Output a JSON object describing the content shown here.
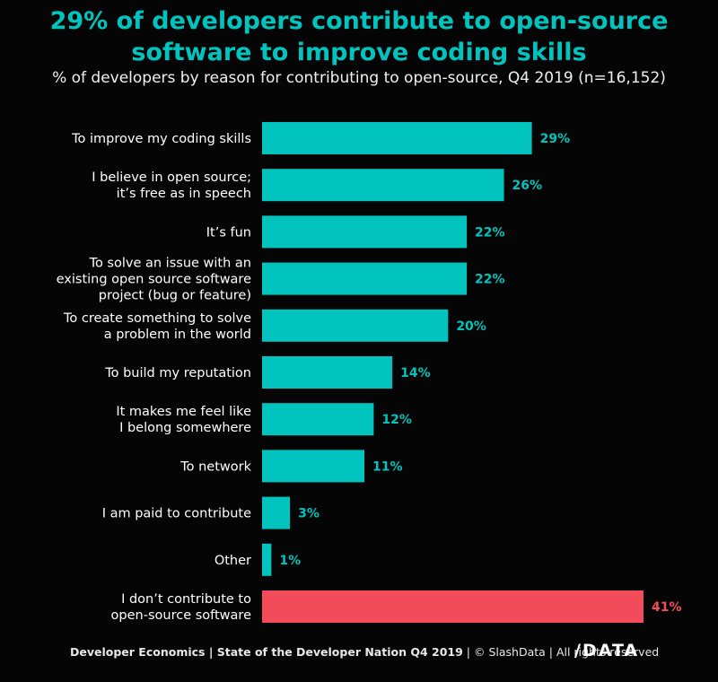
{
  "header": {
    "title_line1": "29% of developers contribute to open-source",
    "title_line2": "software to improve coding skills",
    "subtitle": "% of developers by reason for contributing to open-source, Q4 2019 (n=16,152)"
  },
  "footer": {
    "text_bold": "Developer Economics | State of the Developer Nation Q4 2019",
    "text_rest": " | © SlashData | All rights reserved",
    "logo": "/DATA"
  },
  "colors": {
    "accent": "#00c4bd",
    "highlight": "#f24b5a",
    "background": "#050505"
  },
  "chart_data": {
    "type": "bar",
    "orientation": "horizontal",
    "categories": [
      [
        "To improve my coding skills"
      ],
      [
        "I believe in open source;",
        "it’s free as in speech"
      ],
      [
        "It’s fun"
      ],
      [
        "To solve an issue with an",
        "existing open source software",
        "project (bug or feature)"
      ],
      [
        "To create something to solve",
        "a problem in the world"
      ],
      [
        "To build my reputation"
      ],
      [
        "It makes me feel like",
        "I belong somewhere"
      ],
      [
        "To network"
      ],
      [
        "I am paid to contribute"
      ],
      [
        "Other"
      ],
      [
        "I don’t contribute to",
        "open-source software"
      ]
    ],
    "values": [
      29,
      26,
      22,
      22,
      20,
      14,
      12,
      11,
      3,
      1,
      41
    ],
    "value_labels": [
      "29%",
      "26%",
      "22%",
      "22%",
      "20%",
      "14%",
      "12%",
      "11%",
      "3%",
      "1%",
      "41%"
    ],
    "highlight_index": 10,
    "unit": "%",
    "xlim": [
      0,
      41
    ],
    "grid": false
  }
}
